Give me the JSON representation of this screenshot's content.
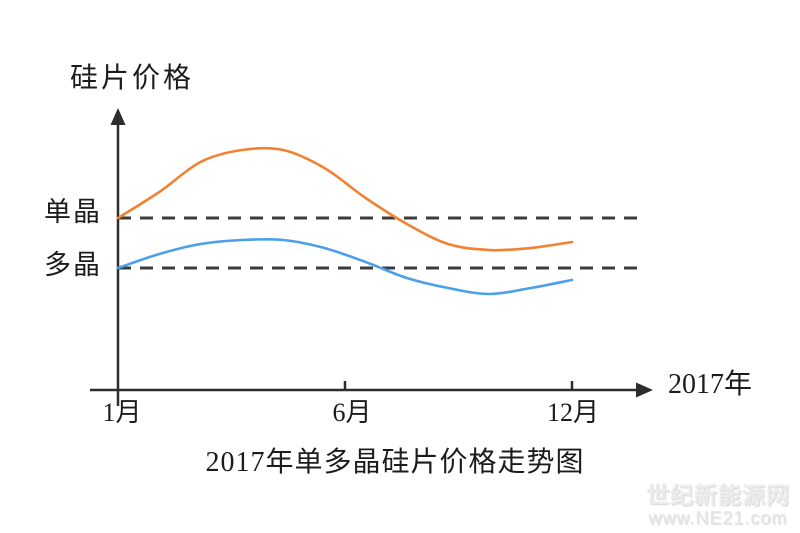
{
  "chart": {
    "y_axis_title": "硅片价格",
    "x_axis_title": "2017年",
    "x_tick_labels": {
      "jan": "1月",
      "jun": "6月",
      "dec": "12月"
    },
    "reference_labels": {
      "mono": "单晶",
      "multi": "多晶"
    },
    "bottom_title": "2017年单多晶硅片价格走势图",
    "colors": {
      "mono_line": "#F08232",
      "multi_line": "#4BA0EB",
      "axis": "#2D2D2D",
      "dashed_reference": "#3C3C3C",
      "text": "#1C1C1C"
    }
  },
  "watermark": {
    "line1": "世纪新能源网",
    "line2": "www.NE21.com"
  },
  "chart_data": {
    "type": "line",
    "title": "2017年单多晶硅片价格走势图",
    "xlabel": "2017年",
    "ylabel": "硅片价格",
    "x": [
      1,
      2,
      3,
      4,
      5,
      6,
      7,
      8,
      9,
      10,
      11,
      12
    ],
    "x_tick_labels_shown": [
      "1月",
      "6月",
      "12月"
    ],
    "series": [
      {
        "name": "单晶",
        "color": "#F08232",
        "values": [
          100,
          113,
          128,
          134,
          134,
          125,
          110,
          97,
          87,
          84,
          85,
          88
        ]
      },
      {
        "name": "多晶",
        "color": "#4BA0EB",
        "values": [
          100,
          107,
          112,
          114,
          114,
          110,
          103,
          95,
          90,
          87,
          90,
          94
        ]
      }
    ],
    "reference_lines": [
      {
        "label": "单晶",
        "series": "单晶",
        "value": 100,
        "style": "dashed"
      },
      {
        "label": "多晶",
        "series": "多晶",
        "value": 100,
        "style": "dashed"
      }
    ],
    "value_note": "y轴无数值刻度；数值为以各自虚线基准线=100估算的相对价格指数",
    "grid": false,
    "legend_position": "none"
  }
}
